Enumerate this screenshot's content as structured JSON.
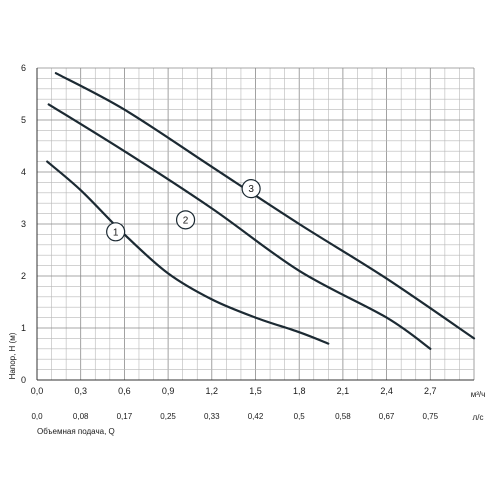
{
  "chart_data": {
    "type": "line",
    "title": "",
    "xlabel": "м³/ч",
    "xlabel_secondary": "Объемная подача, Q",
    "xunit_secondary": "л/с",
    "ylabel": "Напор, H (м)",
    "xlim": [
      0,
      3.0
    ],
    "ylim": [
      0,
      6
    ],
    "grid": true,
    "x_ticks": [
      "0,0",
      "0,3",
      "0,6",
      "0,9",
      "1,2",
      "1,5",
      "1,8",
      "2,1",
      "2,4",
      "2,7"
    ],
    "x_ticks_secondary": [
      "0,0",
      "0,08",
      "0,17",
      "0,25",
      "0,33",
      "0,42",
      "0,5",
      "0,58",
      "0,67",
      "0,75"
    ],
    "y_ticks": [
      "0",
      "1",
      "2",
      "3",
      "4",
      "5",
      "6"
    ],
    "series": [
      {
        "name": "1",
        "label_at": [
          0.54,
          2.85
        ],
        "points": [
          [
            0.07,
            4.2
          ],
          [
            0.3,
            3.65
          ],
          [
            0.6,
            2.8
          ],
          [
            0.9,
            2.05
          ],
          [
            1.2,
            1.55
          ],
          [
            1.5,
            1.2
          ],
          [
            1.8,
            0.92
          ],
          [
            2.0,
            0.7
          ]
        ]
      },
      {
        "name": "2",
        "label_at": [
          1.02,
          3.08
        ],
        "points": [
          [
            0.08,
            5.3
          ],
          [
            0.6,
            4.4
          ],
          [
            1.2,
            3.3
          ],
          [
            1.8,
            2.1
          ],
          [
            2.4,
            1.2
          ],
          [
            2.7,
            0.6
          ]
        ]
      },
      {
        "name": "3",
        "label_at": [
          1.47,
          3.68
        ],
        "points": [
          [
            0.13,
            5.9
          ],
          [
            0.6,
            5.2
          ],
          [
            1.2,
            4.1
          ],
          [
            1.8,
            3.0
          ],
          [
            2.4,
            1.95
          ],
          [
            3.0,
            0.8
          ]
        ]
      }
    ]
  }
}
